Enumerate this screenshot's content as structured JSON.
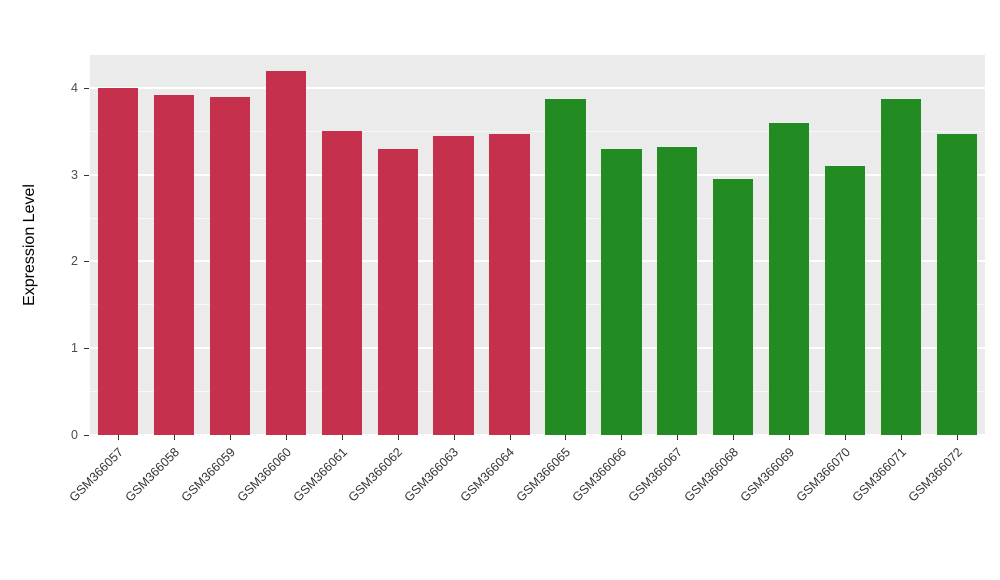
{
  "chart_data": {
    "type": "bar",
    "title": "",
    "xlabel": "",
    "ylabel": "Expression Level",
    "ylim": [
      0,
      4.38
    ],
    "yticks": [
      0,
      1,
      2,
      3,
      4
    ],
    "yticks_minor": [
      0.5,
      1.5,
      2.5,
      3.5
    ],
    "grid": "on",
    "legend": "none",
    "panel_background": "#EBEBEB",
    "grid_color": "#FFFFFF",
    "categories": [
      "GSM366057",
      "GSM366058",
      "GSM366059",
      "GSM366060",
      "GSM366061",
      "GSM366062",
      "GSM366063",
      "GSM366064",
      "GSM366065",
      "GSM366066",
      "GSM366067",
      "GSM366068",
      "GSM366069",
      "GSM366070",
      "GSM366071",
      "GSM366072"
    ],
    "values": [
      4.0,
      3.92,
      3.9,
      4.2,
      3.5,
      3.3,
      3.45,
      3.47,
      3.87,
      3.3,
      3.32,
      2.95,
      3.6,
      3.1,
      3.87,
      3.47
    ],
    "bar_colors": [
      "#C5304C",
      "#C5304C",
      "#C5304C",
      "#C5304C",
      "#C5304C",
      "#C5304C",
      "#C5304C",
      "#C5304C",
      "#228B22",
      "#228B22",
      "#228B22",
      "#228B22",
      "#228B22",
      "#228B22",
      "#228B22",
      "#228B22"
    ],
    "group_colors": {
      "red_group": "#C5304C",
      "green_group": "#228B22"
    }
  }
}
